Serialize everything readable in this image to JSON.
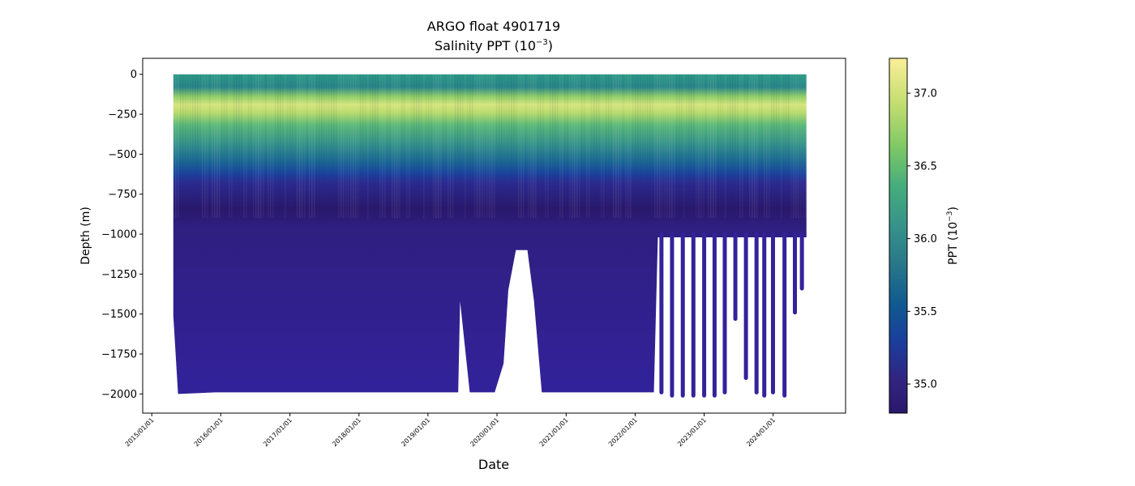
{
  "chart_data": {
    "type": "heatmap",
    "title": "ARGO float 4901719",
    "subtitle": {
      "prefix": "Salinity PPT (10",
      "exponent": "−3",
      "suffix": ")"
    },
    "xlabel": "Date",
    "ylabel": "Depth (m)",
    "x_ticks": [
      "2015/01/01",
      "2016/01/01",
      "2017/01/01",
      "2018/01/01",
      "2019/01/01",
      "2020/01/01",
      "2021/01/01",
      "2022/01/01",
      "2023/01/01",
      "2024/01/01"
    ],
    "y_ticks": [
      0,
      -250,
      -500,
      -750,
      -1000,
      -1250,
      -1500,
      -1750,
      -2000
    ],
    "y_tick_labels": [
      "0",
      "−250",
      "−500",
      "−750",
      "−1000",
      "−1250",
      "−1500",
      "−1750",
      "−2000"
    ],
    "xlim": [
      "2014/11/14",
      "2025/01/18"
    ],
    "ylim": [
      -2120,
      100
    ],
    "colorbar": {
      "label": {
        "prefix": "PPT (10",
        "exponent": "−3",
        "suffix": ")"
      },
      "range": [
        34.8,
        37.24
      ],
      "ticks": [
        35.0,
        35.5,
        36.0,
        36.5,
        37.0
      ],
      "tick_labels": [
        "35.0",
        "35.5",
        "36.0",
        "36.5",
        "37.0"
      ],
      "colormap": "haline",
      "colors": [
        "#2a186c",
        "#32247f",
        "#1b3d9c",
        "#0f5b8f",
        "#29778a",
        "#37938a",
        "#45ad7c",
        "#7ec865",
        "#c2dd70",
        "#fbee98"
      ]
    },
    "profile_span": {
      "start": "2015/04/25",
      "end": "2024/06/25"
    },
    "profile_density_tracks": [
      {
        "depth": -150,
        "value": 37.0
      },
      {
        "depth": -300,
        "value": 36.5
      },
      {
        "depth": -500,
        "value": 36.0
      },
      {
        "depth": -650,
        "value": 35.5
      },
      {
        "depth": -800,
        "value": 35.0
      },
      {
        "depth": -1000,
        "value": 34.95
      },
      {
        "depth": -2000,
        "value": 34.97
      }
    ],
    "max_depth_by_date": [
      {
        "date": "2015/04/25",
        "depth": -1510
      },
      {
        "date": "2015/05/20",
        "depth": -2000
      },
      {
        "date": "2015/12/05",
        "depth": -1990
      },
      {
        "date": "2016/01/01",
        "depth": -1990
      },
      {
        "date": "2019/06/10",
        "depth": -1990
      },
      {
        "date": "2019/06/20",
        "depth": -1420
      },
      {
        "date": "2019/08/10",
        "depth": -1990
      },
      {
        "date": "2019/12/20",
        "depth": -1990
      },
      {
        "date": "2020/02/05",
        "depth": -1810
      },
      {
        "date": "2020/03/01",
        "depth": -1350
      },
      {
        "date": "2020/04/10",
        "depth": -1100
      },
      {
        "date": "2020/06/10",
        "depth": -1100
      },
      {
        "date": "2020/07/15",
        "depth": -1420
      },
      {
        "date": "2020/08/25",
        "depth": -1990
      },
      {
        "date": "2022/04/10",
        "depth": -1990
      },
      {
        "date": "2022/05/01",
        "depth": -1020
      },
      {
        "date": "2024/06/25",
        "depth": -1020
      }
    ],
    "late_deep_dives": [
      {
        "date": "2022/05/20",
        "depth": -1990
      },
      {
        "date": "2022/07/15",
        "depth": -2010
      },
      {
        "date": "2022/09/10",
        "depth": -2010
      },
      {
        "date": "2022/11/05",
        "depth": -2010
      },
      {
        "date": "2023/01/01",
        "depth": -2010
      },
      {
        "date": "2023/02/25",
        "depth": -2010
      },
      {
        "date": "2023/04/20",
        "depth": -1990
      },
      {
        "date": "2023/06/15",
        "depth": -1530
      },
      {
        "date": "2023/08/10",
        "depth": -1900
      },
      {
        "date": "2023/10/05",
        "depth": -1990
      },
      {
        "date": "2023/11/15",
        "depth": -2010
      },
      {
        "date": "2023/12/31",
        "depth": -1990
      },
      {
        "date": "2024/03/01",
        "depth": -2010
      },
      {
        "date": "2024/04/25",
        "depth": -1490
      },
      {
        "date": "2024/06/01",
        "depth": -1340
      }
    ],
    "grid": false,
    "legend": "colorbar-right"
  }
}
